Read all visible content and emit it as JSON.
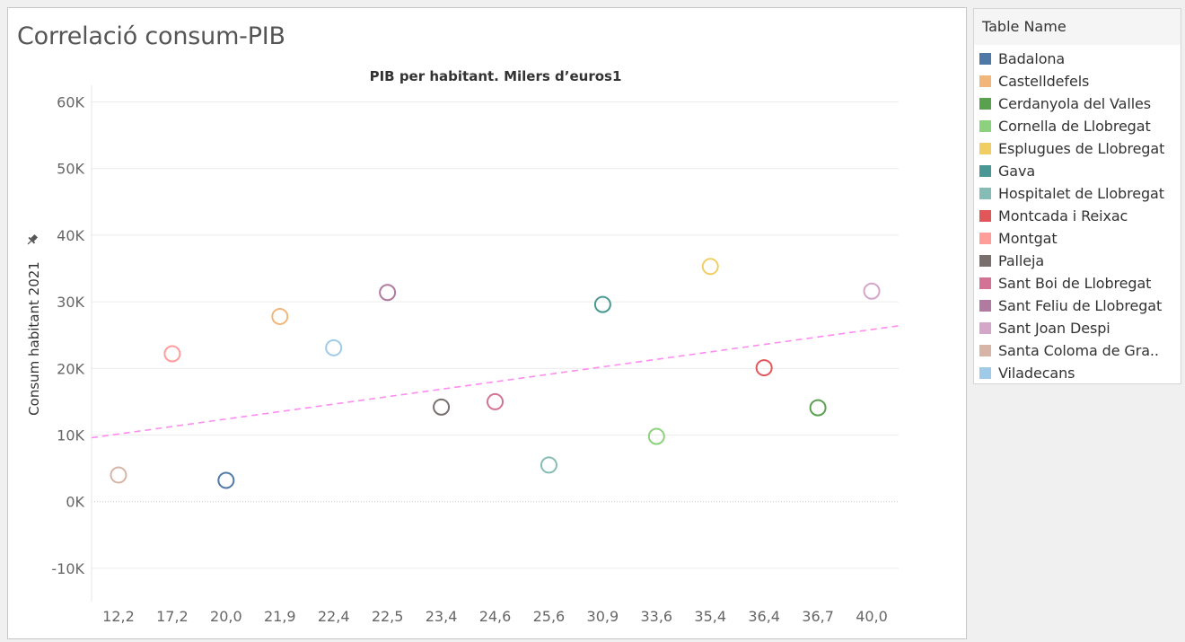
{
  "title": "Correlació consum-PIB",
  "legend": {
    "title": "Table Name",
    "items": [
      {
        "label": "Badalona",
        "color": "#4e79a7"
      },
      {
        "label": "Castelldefels",
        "color": "#f1b67a"
      },
      {
        "label": "Cerdanyola del Valles",
        "color": "#59a14f"
      },
      {
        "label": "Cornella de Llobregat",
        "color": "#8cd17d"
      },
      {
        "label": "Esplugues de Llobregat",
        "color": "#f1ce63"
      },
      {
        "label": "Gava",
        "color": "#499894"
      },
      {
        "label": "Hospitalet de Llobregat",
        "color": "#86bcb6"
      },
      {
        "label": "Montcada i Reixac",
        "color": "#e15759"
      },
      {
        "label": "Montgat",
        "color": "#ff9d9a"
      },
      {
        "label": "Palleja",
        "color": "#79706e"
      },
      {
        "label": "Sant Boi de Llobregat",
        "color": "#d37295"
      },
      {
        "label": "Sant Feliu de Llobregat",
        "color": "#b07aa1"
      },
      {
        "label": "Sant Joan Despi",
        "color": "#d4a6c8"
      },
      {
        "label": "Santa Coloma de Gra..",
        "color": "#d7b5a6"
      },
      {
        "label": "Viladecans",
        "color": "#a0cbe8"
      }
    ]
  },
  "chart_data": {
    "type": "scatter",
    "title": "PIB per habitant. Milers d’euros1",
    "ylabel": "Consum habitant 2021",
    "ylim": [
      -15000,
      62500
    ],
    "yticks": [
      -10000,
      0,
      10000,
      20000,
      30000,
      40000,
      50000,
      60000
    ],
    "ytick_labels": [
      "-10K",
      "0K",
      "10K",
      "20K",
      "30K",
      "40K",
      "50K",
      "60K"
    ],
    "categories": [
      "12,2",
      "17,2",
      "20,0",
      "21,9",
      "22,4",
      "22,5",
      "23,4",
      "24,6",
      "25,6",
      "30,9",
      "33,6",
      "35,4",
      "36,4",
      "36,7",
      "40,0"
    ],
    "points": [
      {
        "x": "12,2",
        "y": 4000,
        "series": "Santa Coloma de Gra..",
        "color": "#d7b5a6"
      },
      {
        "x": "17,2",
        "y": 22200,
        "series": "Montgat",
        "color": "#ff9d9a"
      },
      {
        "x": "20,0",
        "y": 3200,
        "series": "Badalona",
        "color": "#4e79a7"
      },
      {
        "x": "21,9",
        "y": 27800,
        "series": "Castelldefels",
        "color": "#f1b67a"
      },
      {
        "x": "22,4",
        "y": 23100,
        "series": "Viladecans",
        "color": "#a0cbe8"
      },
      {
        "x": "22,5",
        "y": 31400,
        "series": "Sant Feliu de Llobregat",
        "color": "#b07aa1"
      },
      {
        "x": "23,4",
        "y": 14200,
        "series": "Palleja",
        "color": "#79706e"
      },
      {
        "x": "24,6",
        "y": 15000,
        "series": "Sant Boi de Llobregat",
        "color": "#d37295"
      },
      {
        "x": "25,6",
        "y": 5500,
        "series": "Hospitalet de Llobregat",
        "color": "#86bcb6"
      },
      {
        "x": "30,9",
        "y": 29600,
        "series": "Gava",
        "color": "#499894"
      },
      {
        "x": "33,6",
        "y": 9800,
        "series": "Cornella de Llobregat",
        "color": "#8cd17d"
      },
      {
        "x": "35,4",
        "y": 35300,
        "series": "Esplugues de Llobregat",
        "color": "#f1ce63"
      },
      {
        "x": "36,4",
        "y": 20100,
        "series": "Montcada i Reixac",
        "color": "#e15759"
      },
      {
        "x": "36,7",
        "y": 14100,
        "series": "Cerdanyola del Valles",
        "color": "#59a14f"
      },
      {
        "x": "40,0",
        "y": 31600,
        "series": "Sant Joan Despi",
        "color": "#d4a6c8"
      }
    ],
    "trend_line": {
      "start_y": 9600,
      "end_y": 26400,
      "color": "#ff8cf0",
      "style": "dashed"
    },
    "grid": true,
    "zero_line": true,
    "legend_position": "right"
  }
}
